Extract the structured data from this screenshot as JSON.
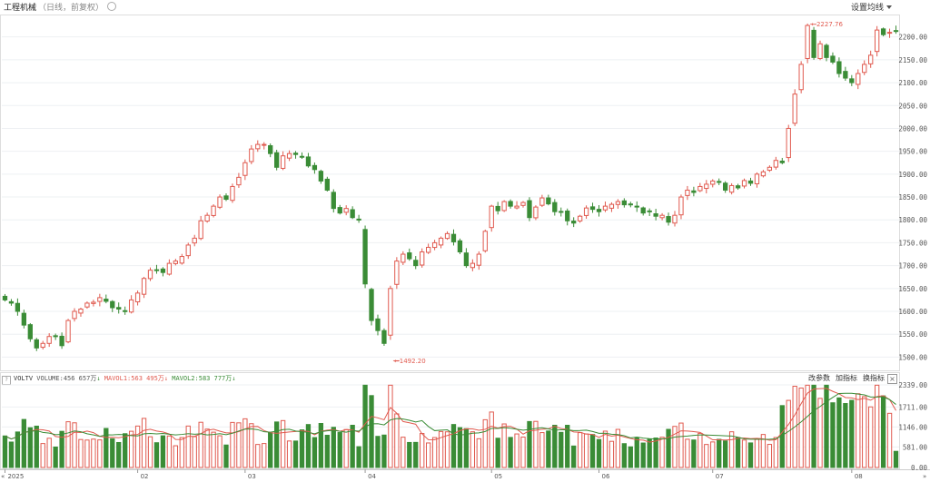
{
  "header": {
    "title": "工程机械",
    "subtitle": "（日线，前复权）",
    "ma_button": "设置均线"
  },
  "volume_panel": {
    "name": "VOLTV",
    "volume_label": "VOLUME:",
    "volume_value": "456 657万",
    "mavol1_label": "MAVOL1:",
    "mavol1_value": "563 495万",
    "mavol2_label": "MAVOL2:",
    "mavol2_value": "583 777万",
    "buttons": [
      "改参数",
      "加指标",
      "换指标"
    ],
    "close": "×"
  },
  "colors": {
    "up": "#e05a4f",
    "down": "#3a8c36",
    "mavol1": "#e05a4f",
    "mavol2": "#3a8c36"
  },
  "chart_data": {
    "type": "candlestick",
    "title": "工程机械",
    "price_axis": {
      "ticks": [
        "2200.00",
        "2150.00",
        "2100.00",
        "2050.00",
        "2000.00",
        "1950.00",
        "1900.00",
        "1850.00",
        "1800.00",
        "1750.00",
        "1700.00",
        "1650.00",
        "1600.00",
        "1550.00",
        "1500.00"
      ],
      "ylim": [
        1475,
        2245
      ]
    },
    "volume_axis": {
      "ticks": [
        "2339.00",
        "1711.00",
        "1146.00",
        "581.00",
        "0.00"
      ],
      "ylim": [
        0,
        2339
      ]
    },
    "x_labels": [
      {
        "label": "2025",
        "index": 0
      },
      {
        "label": "02",
        "index": 21
      },
      {
        "label": "03",
        "index": 38
      },
      {
        "label": "04",
        "index": 57
      },
      {
        "label": "05",
        "index": 77
      },
      {
        "label": "06",
        "index": 94
      },
      {
        "label": "07",
        "index": 112
      },
      {
        "label": "08",
        "index": 134
      }
    ],
    "annotations": [
      {
        "label": "2227.76",
        "index": 127,
        "value": 2227.76
      },
      {
        "label": "1492.20",
        "index": 61,
        "value": 1492.2
      }
    ],
    "close": [
      1625,
      1618,
      1600,
      1570,
      1540,
      1520,
      1530,
      1545,
      1545,
      1525,
      1580,
      1600,
      1605,
      1618,
      1620,
      1630,
      1622,
      1608,
      1605,
      1600,
      1625,
      1640,
      1672,
      1690,
      1690,
      1685,
      1705,
      1710,
      1720,
      1745,
      1760,
      1798,
      1810,
      1830,
      1850,
      1845,
      1873,
      1893,
      1925,
      1955,
      1965,
      1965,
      1945,
      1915,
      1940,
      1945,
      1943,
      1938,
      1918,
      1910,
      1885,
      1865,
      1825,
      1815,
      1825,
      1805,
      1800,
      1660,
      1580,
      1558,
      1530,
      1650,
      1710,
      1725,
      1715,
      1700,
      1730,
      1740,
      1750,
      1760,
      1770,
      1752,
      1730,
      1700,
      1705,
      1725,
      1775,
      1830,
      1820,
      1840,
      1830,
      1830,
      1838,
      1805,
      1828,
      1848,
      1835,
      1818,
      1818,
      1798,
      1793,
      1808,
      1826,
      1823,
      1818,
      1830,
      1834,
      1840,
      1833,
      1833,
      1828,
      1815,
      1818,
      1808,
      1810,
      1795,
      1810,
      1850,
      1865,
      1860,
      1873,
      1878,
      1885,
      1882,
      1865,
      1875,
      1870,
      1886,
      1880,
      1900,
      1905,
      1915,
      1930,
      1925,
      2000,
      2075,
      2140,
      2225,
      2155,
      2185,
      2155,
      2145,
      2120,
      2110,
      2100,
      2120,
      2140,
      2160,
      2215,
      2205,
      2210,
      2212
    ]
  }
}
